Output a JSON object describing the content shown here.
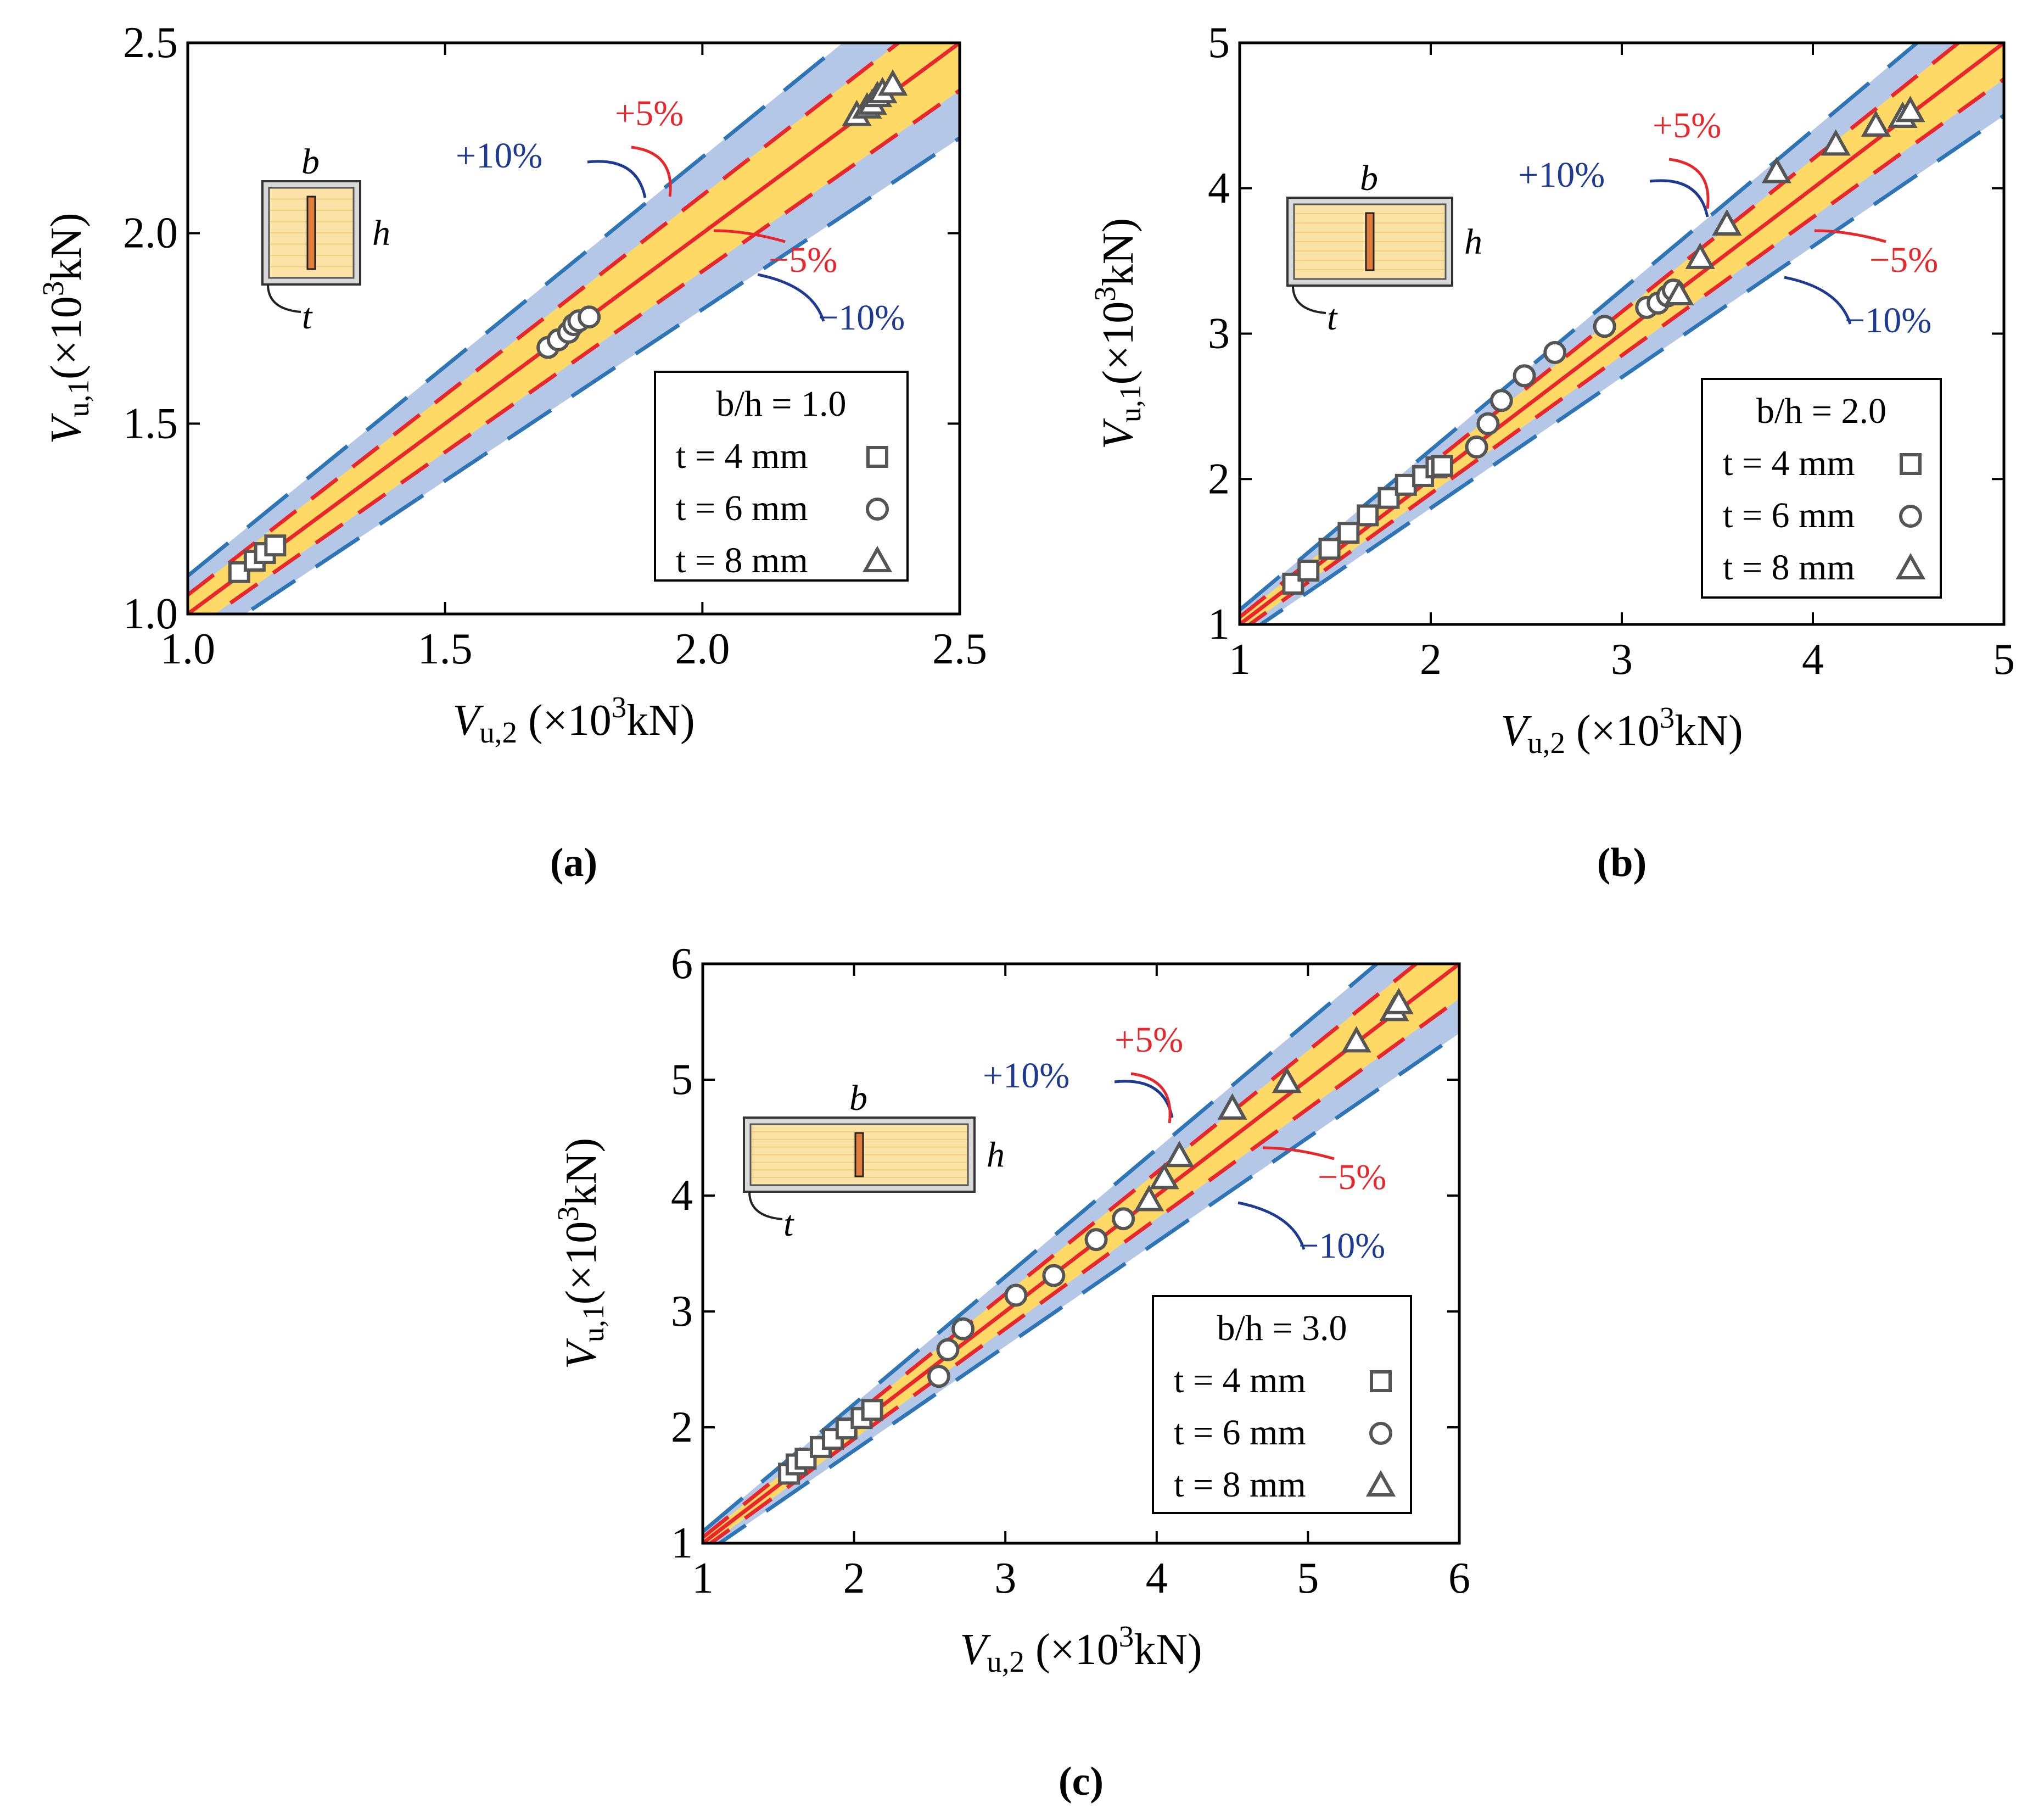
{
  "colors": {
    "inner_band": "#FFD966",
    "outer_band": "#B4C7E7",
    "red": "#E8262B",
    "blue": "#2E75B6",
    "label_blue": "#1F3A93",
    "marker_fill": "#FFFFFF",
    "marker_stroke": "#555555",
    "inset_fill": "#FBE3A8",
    "inset_border": "#888888"
  },
  "icons": {
    "section_inset": "rectangular-section-with-plate-icon"
  },
  "annotations": {
    "plus10": "+10%",
    "plus5": "+5%",
    "minus5": "−5%",
    "minus10": "−10%",
    "inset_b": "b",
    "inset_h": "h",
    "inset_t": "t"
  },
  "axis_text": {
    "xvar": "V",
    "xsub": "u,2",
    "yvar": "V",
    "ysub": "u,1",
    "unit_pre": " (×10",
    "unit_exp": "3",
    "unit_post": "kN)",
    "unit_pre_y": "(×10"
  },
  "chart_data": [
    {
      "type": "scatter",
      "panel": "a",
      "caption": "(a)",
      "xlabel": "V_u,2 (×10^3 kN)",
      "ylabel": "V_u,1 (×10^3 kN)",
      "xlim": [
        1.0,
        2.5
      ],
      "ylim": [
        1.0,
        2.5
      ],
      "xticks": [
        "1.0",
        "1.5",
        "2.0",
        "2.5"
      ],
      "yticks": [
        "1.0",
        "1.5",
        "2.0",
        "2.5"
      ],
      "tickvals": [
        1.0,
        1.5,
        2.0,
        2.5
      ],
      "legend_title": "b/h = 1.0",
      "series": [
        {
          "name": "t = 4 mm",
          "marker": "square",
          "points": [
            [
              1.1,
              1.11
            ],
            [
              1.13,
              1.14
            ],
            [
              1.15,
              1.16
            ],
            [
              1.17,
              1.18
            ]
          ]
        },
        {
          "name": "t = 6 mm",
          "marker": "circle",
          "points": [
            [
              1.7,
              1.7
            ],
            [
              1.72,
              1.72
            ],
            [
              1.74,
              1.74
            ],
            [
              1.75,
              1.76
            ],
            [
              1.76,
              1.77
            ],
            [
              1.78,
              1.78
            ]
          ]
        },
        {
          "name": "t = 8 mm",
          "marker": "triangle",
          "points": [
            [
              2.3,
              2.31
            ],
            [
              2.32,
              2.33
            ],
            [
              2.33,
              2.34
            ],
            [
              2.34,
              2.36
            ],
            [
              2.35,
              2.37
            ],
            [
              2.37,
              2.39
            ]
          ]
        }
      ]
    },
    {
      "type": "scatter",
      "panel": "b",
      "caption": "(b)",
      "xlabel": "V_u,2 (×10^3 kN)",
      "ylabel": "V_u,1 (×10^3 kN)",
      "xlim": [
        1,
        5
      ],
      "ylim": [
        1,
        5
      ],
      "xticks": [
        "1",
        "2",
        "3",
        "4",
        "5"
      ],
      "yticks": [
        "1",
        "2",
        "3",
        "4",
        "5"
      ],
      "tickvals": [
        1,
        2,
        3,
        4,
        5
      ],
      "legend_title": "b/h = 2.0",
      "series": [
        {
          "name": "t = 4 mm",
          "marker": "square",
          "points": [
            [
              1.28,
              1.28
            ],
            [
              1.36,
              1.37
            ],
            [
              1.47,
              1.52
            ],
            [
              1.57,
              1.63
            ],
            [
              1.67,
              1.75
            ],
            [
              1.78,
              1.87
            ],
            [
              1.87,
              1.96
            ],
            [
              1.96,
              2.02
            ],
            [
              2.03,
              2.08
            ],
            [
              2.06,
              2.09
            ]
          ]
        },
        {
          "name": "t = 6 mm",
          "marker": "circle",
          "points": [
            [
              2.24,
              2.22
            ],
            [
              2.3,
              2.38
            ],
            [
              2.37,
              2.54
            ],
            [
              2.49,
              2.71
            ],
            [
              2.65,
              2.87
            ],
            [
              2.91,
              3.05
            ],
            [
              3.13,
              3.18
            ],
            [
              3.19,
              3.21
            ],
            [
              3.24,
              3.26
            ],
            [
              3.27,
              3.3
            ]
          ]
        },
        {
          "name": "t = 8 mm",
          "marker": "triangle",
          "points": [
            [
              3.3,
              3.27
            ],
            [
              3.41,
              3.52
            ],
            [
              3.55,
              3.75
            ],
            [
              3.81,
              4.11
            ],
            [
              4.12,
              4.3
            ],
            [
              4.33,
              4.43
            ],
            [
              4.47,
              4.49
            ],
            [
              4.51,
              4.53
            ]
          ]
        }
      ]
    },
    {
      "type": "scatter",
      "panel": "c",
      "caption": "(c)",
      "xlabel": "V_u,2 (×10^3 kN)",
      "ylabel": "V_u,1 (×10^3 kN)",
      "xlim": [
        1,
        6
      ],
      "ylim": [
        1,
        6
      ],
      "xticks": [
        "1",
        "2",
        "3",
        "4",
        "5",
        "6"
      ],
      "yticks": [
        "1",
        "2",
        "3",
        "4",
        "5",
        "6"
      ],
      "tickvals": [
        1,
        2,
        3,
        4,
        5,
        6
      ],
      "legend_title": "b/h = 3.0",
      "series": [
        {
          "name": "t = 4 mm",
          "marker": "square",
          "points": [
            [
              1.57,
              1.6
            ],
            [
              1.62,
              1.68
            ],
            [
              1.68,
              1.73
            ],
            [
              1.78,
              1.83
            ],
            [
              1.86,
              1.9
            ],
            [
              1.95,
              1.99
            ],
            [
              2.05,
              2.08
            ],
            [
              2.12,
              2.15
            ]
          ]
        },
        {
          "name": "t = 6 mm",
          "marker": "circle",
          "points": [
            [
              2.56,
              2.44
            ],
            [
              2.62,
              2.67
            ],
            [
              2.72,
              2.85
            ],
            [
              3.07,
              3.14
            ],
            [
              3.32,
              3.31
            ],
            [
              3.6,
              3.62
            ],
            [
              3.78,
              3.8
            ]
          ]
        },
        {
          "name": "t = 8 mm",
          "marker": "triangle",
          "points": [
            [
              3.95,
              3.96
            ],
            [
              4.05,
              4.15
            ],
            [
              4.15,
              4.34
            ],
            [
              4.5,
              4.75
            ],
            [
              4.86,
              4.98
            ],
            [
              5.32,
              5.33
            ],
            [
              5.57,
              5.6
            ],
            [
              5.6,
              5.66
            ]
          ]
        }
      ]
    }
  ]
}
